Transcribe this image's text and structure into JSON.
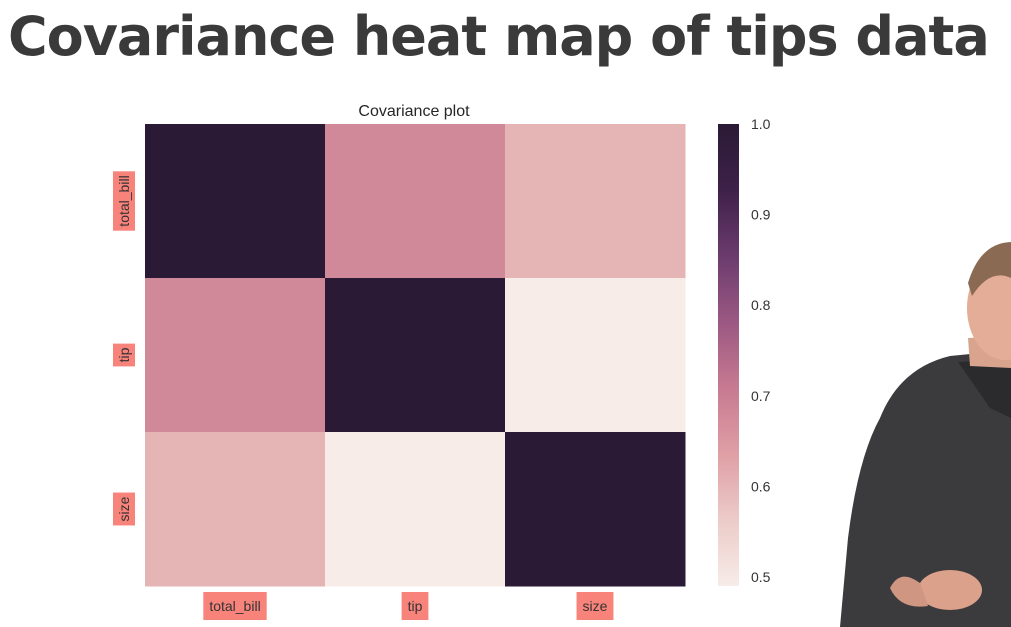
{
  "slide": {
    "title": "Covariance heat map of tips data"
  },
  "presenter_icon": "person-presenter",
  "chart_data": {
    "type": "heatmap",
    "title": "Covariance plot",
    "rows": [
      "total_bill",
      "tip",
      "size"
    ],
    "columns": [
      "total_bill",
      "tip",
      "size"
    ],
    "values": [
      [
        1.0,
        0.68,
        0.6
      ],
      [
        0.68,
        1.0,
        0.49
      ],
      [
        0.6,
        0.49,
        1.0
      ]
    ],
    "colorbar": {
      "range": [
        0.49,
        1.0
      ],
      "ticks": [
        "1.0",
        "0.9",
        "0.8",
        "0.7",
        "0.6",
        "0.5"
      ],
      "tick_values": [
        1.0,
        0.9,
        0.8,
        0.7,
        0.6,
        0.5
      ]
    },
    "colormap": [
      "#f7ece8",
      "#eccbc8",
      "#df9fa5",
      "#c77a91",
      "#9b5882",
      "#6b3b6e",
      "#3e2149",
      "#2a1a35"
    ],
    "label_highlight_color": "#f8837a",
    "legend_position": "right"
  }
}
